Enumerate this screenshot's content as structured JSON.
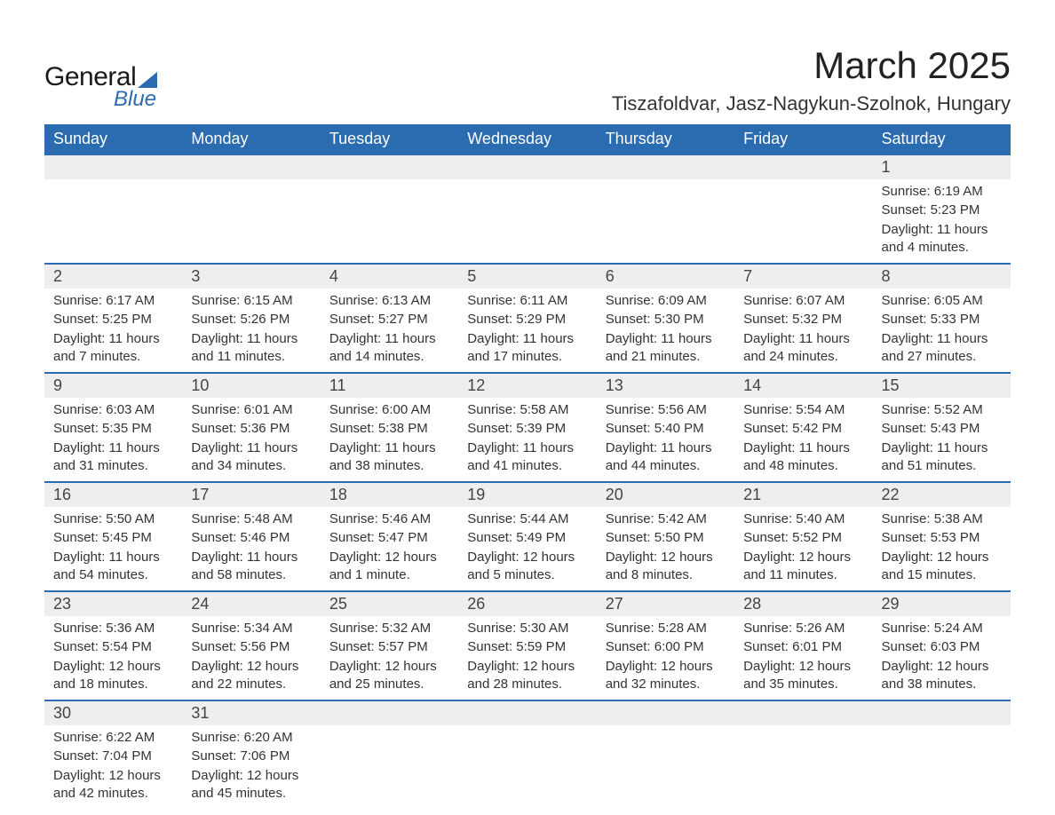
{
  "logo": {
    "word1": "General",
    "word2": "Blue"
  },
  "header": {
    "month_title": "March 2025",
    "location": "Tiszafoldvar, Jasz-Nagykun-Szolnok, Hungary"
  },
  "weekdays": [
    "Sunday",
    "Monday",
    "Tuesday",
    "Wednesday",
    "Thursday",
    "Friday",
    "Saturday"
  ],
  "colors": {
    "brand_blue": "#2b6bb0",
    "header_bg": "#2b6bb0",
    "header_text": "#ffffff",
    "daynum_bg": "#eeeeee",
    "row_separator": "#2b6bb0",
    "body_text": "#333333",
    "page_bg": "#ffffff"
  },
  "typography": {
    "month_title_pt": 42,
    "location_pt": 22,
    "weekday_header_pt": 18,
    "daynum_pt": 18,
    "cell_text_pt": 15
  },
  "labels": {
    "sunrise": "Sunrise:",
    "sunset": "Sunset:",
    "daylight": "Daylight:"
  },
  "weeks": [
    [
      null,
      null,
      null,
      null,
      null,
      null,
      {
        "n": "1",
        "sunrise": "6:19 AM",
        "sunset": "5:23 PM",
        "daylight": "11 hours and 4 minutes."
      }
    ],
    [
      {
        "n": "2",
        "sunrise": "6:17 AM",
        "sunset": "5:25 PM",
        "daylight": "11 hours and 7 minutes."
      },
      {
        "n": "3",
        "sunrise": "6:15 AM",
        "sunset": "5:26 PM",
        "daylight": "11 hours and 11 minutes."
      },
      {
        "n": "4",
        "sunrise": "6:13 AM",
        "sunset": "5:27 PM",
        "daylight": "11 hours and 14 minutes."
      },
      {
        "n": "5",
        "sunrise": "6:11 AM",
        "sunset": "5:29 PM",
        "daylight": "11 hours and 17 minutes."
      },
      {
        "n": "6",
        "sunrise": "6:09 AM",
        "sunset": "5:30 PM",
        "daylight": "11 hours and 21 minutes."
      },
      {
        "n": "7",
        "sunrise": "6:07 AM",
        "sunset": "5:32 PM",
        "daylight": "11 hours and 24 minutes."
      },
      {
        "n": "8",
        "sunrise": "6:05 AM",
        "sunset": "5:33 PM",
        "daylight": "11 hours and 27 minutes."
      }
    ],
    [
      {
        "n": "9",
        "sunrise": "6:03 AM",
        "sunset": "5:35 PM",
        "daylight": "11 hours and 31 minutes."
      },
      {
        "n": "10",
        "sunrise": "6:01 AM",
        "sunset": "5:36 PM",
        "daylight": "11 hours and 34 minutes."
      },
      {
        "n": "11",
        "sunrise": "6:00 AM",
        "sunset": "5:38 PM",
        "daylight": "11 hours and 38 minutes."
      },
      {
        "n": "12",
        "sunrise": "5:58 AM",
        "sunset": "5:39 PM",
        "daylight": "11 hours and 41 minutes."
      },
      {
        "n": "13",
        "sunrise": "5:56 AM",
        "sunset": "5:40 PM",
        "daylight": "11 hours and 44 minutes."
      },
      {
        "n": "14",
        "sunrise": "5:54 AM",
        "sunset": "5:42 PM",
        "daylight": "11 hours and 48 minutes."
      },
      {
        "n": "15",
        "sunrise": "5:52 AM",
        "sunset": "5:43 PM",
        "daylight": "11 hours and 51 minutes."
      }
    ],
    [
      {
        "n": "16",
        "sunrise": "5:50 AM",
        "sunset": "5:45 PM",
        "daylight": "11 hours and 54 minutes."
      },
      {
        "n": "17",
        "sunrise": "5:48 AM",
        "sunset": "5:46 PM",
        "daylight": "11 hours and 58 minutes."
      },
      {
        "n": "18",
        "sunrise": "5:46 AM",
        "sunset": "5:47 PM",
        "daylight": "12 hours and 1 minute."
      },
      {
        "n": "19",
        "sunrise": "5:44 AM",
        "sunset": "5:49 PM",
        "daylight": "12 hours and 5 minutes."
      },
      {
        "n": "20",
        "sunrise": "5:42 AM",
        "sunset": "5:50 PM",
        "daylight": "12 hours and 8 minutes."
      },
      {
        "n": "21",
        "sunrise": "5:40 AM",
        "sunset": "5:52 PM",
        "daylight": "12 hours and 11 minutes."
      },
      {
        "n": "22",
        "sunrise": "5:38 AM",
        "sunset": "5:53 PM",
        "daylight": "12 hours and 15 minutes."
      }
    ],
    [
      {
        "n": "23",
        "sunrise": "5:36 AM",
        "sunset": "5:54 PM",
        "daylight": "12 hours and 18 minutes."
      },
      {
        "n": "24",
        "sunrise": "5:34 AM",
        "sunset": "5:56 PM",
        "daylight": "12 hours and 22 minutes."
      },
      {
        "n": "25",
        "sunrise": "5:32 AM",
        "sunset": "5:57 PM",
        "daylight": "12 hours and 25 minutes."
      },
      {
        "n": "26",
        "sunrise": "5:30 AM",
        "sunset": "5:59 PM",
        "daylight": "12 hours and 28 minutes."
      },
      {
        "n": "27",
        "sunrise": "5:28 AM",
        "sunset": "6:00 PM",
        "daylight": "12 hours and 32 minutes."
      },
      {
        "n": "28",
        "sunrise": "5:26 AM",
        "sunset": "6:01 PM",
        "daylight": "12 hours and 35 minutes."
      },
      {
        "n": "29",
        "sunrise": "5:24 AM",
        "sunset": "6:03 PM",
        "daylight": "12 hours and 38 minutes."
      }
    ],
    [
      {
        "n": "30",
        "sunrise": "6:22 AM",
        "sunset": "7:04 PM",
        "daylight": "12 hours and 42 minutes."
      },
      {
        "n": "31",
        "sunrise": "6:20 AM",
        "sunset": "7:06 PM",
        "daylight": "12 hours and 45 minutes."
      },
      null,
      null,
      null,
      null,
      null
    ]
  ]
}
